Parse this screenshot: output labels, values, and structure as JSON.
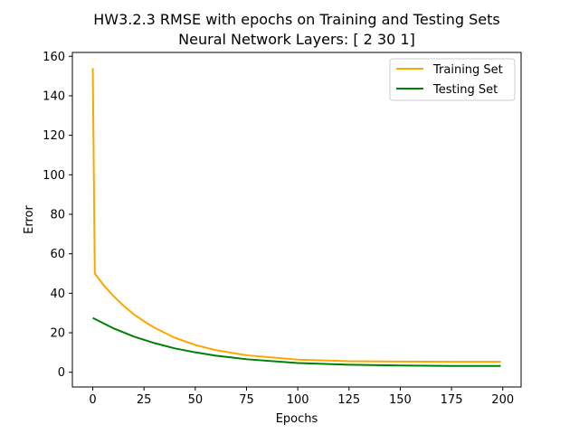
{
  "chart_data": {
    "type": "line",
    "title": "HW3.2.3 RMSE with epochs on Training and Testing Sets",
    "subtitle": "Neural Network Layers: [ 2 30  1]",
    "xlabel": "Epochs",
    "ylabel": "Error",
    "xlim": [
      -9.95,
      208.95
    ],
    "ylim": [
      -7.45,
      161.95
    ],
    "xticks": [
      0,
      25,
      50,
      75,
      100,
      125,
      150,
      175,
      200
    ],
    "yticks": [
      0,
      20,
      40,
      60,
      80,
      100,
      120,
      140,
      160
    ],
    "grid": false,
    "legend_position": "upper right",
    "series": [
      {
        "name": "Training Set",
        "color": "#ffa500",
        "x": [
          0,
          1,
          5,
          10,
          15,
          20,
          25,
          30,
          40,
          50,
          60,
          75,
          100,
          125,
          150,
          175,
          199
        ],
        "values": [
          154.0,
          50.0,
          44.5,
          38.7,
          33.7,
          29.4,
          25.8,
          22.6,
          17.5,
          13.8,
          11.2,
          8.6,
          6.4,
          5.6,
          5.4,
          5.3,
          5.3
        ]
      },
      {
        "name": "Testing Set",
        "color": "#008000",
        "x": [
          0,
          10,
          20,
          30,
          40,
          50,
          60,
          75,
          100,
          125,
          150,
          175,
          199
        ],
        "values": [
          27.5,
          22.3,
          18.1,
          14.8,
          12.1,
          10.1,
          8.4,
          6.6,
          4.7,
          3.8,
          3.4,
          3.2,
          3.2
        ]
      }
    ]
  }
}
